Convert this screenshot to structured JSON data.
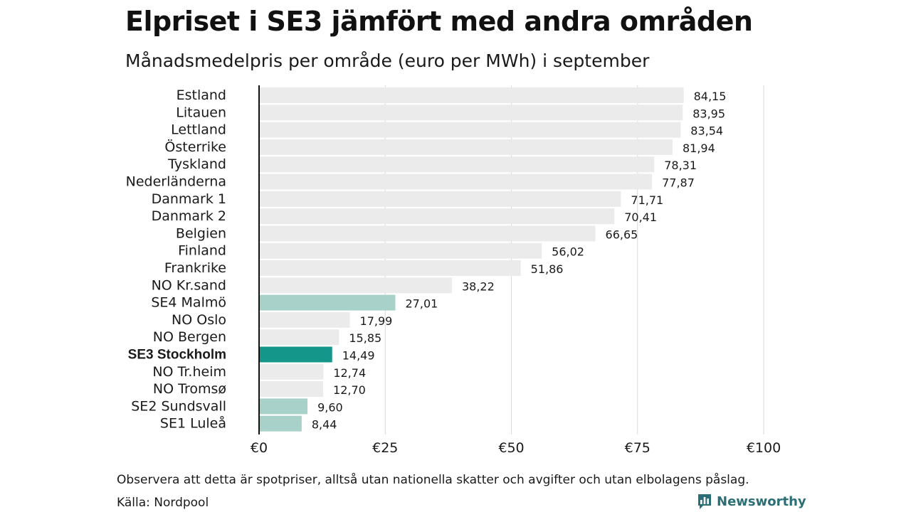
{
  "title": "Elpriset i SE3 jämfört med andra områden",
  "subtitle": "Månadsmedelpris per område (euro per MWh) i september",
  "footnote": "Observera att detta är spotpriser, alltså utan nationella skatter och avgifter och utan elbolagens påslag.",
  "source": "Källa: Nordpool",
  "brand": {
    "name": "Newsworthy",
    "icon": "newsworthy-logo-icon"
  },
  "colors": {
    "default_bar": "#ebebeb",
    "swedish_bar": "#a8d1c9",
    "highlight_bar": "#14968a",
    "axis_line": "#111111",
    "grid": "#d9d9d9"
  },
  "chart_data": {
    "type": "bar",
    "orientation": "horizontal",
    "categories": [
      "Estland",
      "Litauen",
      "Lettland",
      "Österrike",
      "Tyskland",
      "Nederländerna",
      "Danmark 1",
      "Danmark 2",
      "Belgien",
      "Finland",
      "Frankrike",
      "NO Kr.sand",
      "SE4 Malmö",
      "NO Oslo",
      "NO Bergen",
      "SE3 Stockholm",
      "NO Tr.heim",
      "NO Tromsø",
      "SE2 Sundsvall",
      "SE1 Luleå"
    ],
    "values": [
      84.15,
      83.95,
      83.54,
      81.94,
      78.31,
      77.87,
      71.71,
      70.41,
      66.65,
      56.02,
      51.86,
      38.22,
      27.01,
      17.99,
      15.85,
      14.49,
      12.74,
      12.7,
      9.6,
      8.44
    ],
    "value_labels": [
      "84,15",
      "83,95",
      "83,54",
      "81,94",
      "78,31",
      "77,87",
      "71,71",
      "70,41",
      "66,65",
      "56,02",
      "51,86",
      "38,22",
      "27,01",
      "17,99",
      "15,85",
      "14,49",
      "12,74",
      "12,70",
      "9,60",
      "8,44"
    ],
    "bar_style": [
      "default",
      "default",
      "default",
      "default",
      "default",
      "default",
      "default",
      "default",
      "default",
      "default",
      "default",
      "default",
      "swedish",
      "default",
      "default",
      "highlight",
      "default",
      "default",
      "swedish",
      "swedish"
    ],
    "highlight_category": "SE3 Stockholm",
    "xlim": [
      0,
      100
    ],
    "x_ticks": [
      0,
      25,
      50,
      75,
      100
    ],
    "x_tick_labels": [
      "€0",
      "€25",
      "€50",
      "€75",
      "€100"
    ],
    "grid": true,
    "legend": "none"
  }
}
